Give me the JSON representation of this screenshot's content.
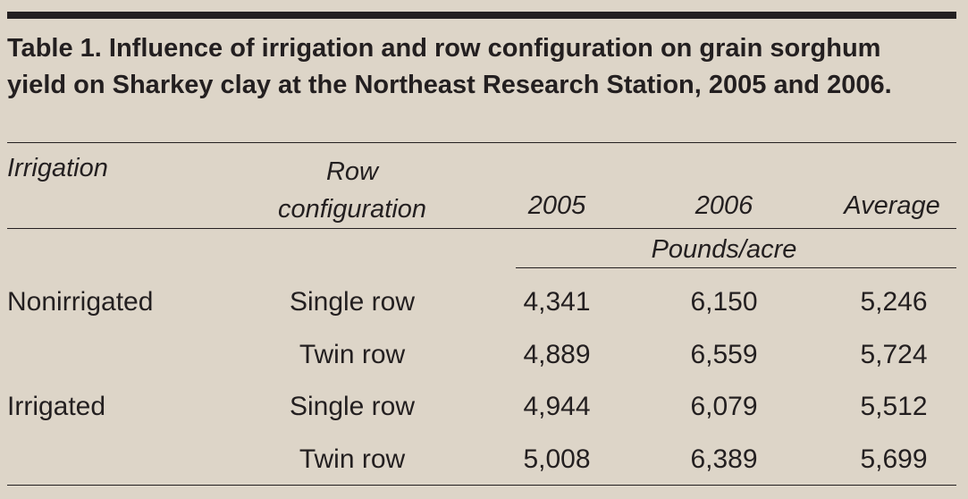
{
  "title": "Table 1. Influence of irrigation and row configuration on grain sorghum yield on Sharkey clay at the Northeast Research Station, 2005 and 2006.",
  "table": {
    "headers": [
      "Irrigation",
      "Row configuration",
      "2005",
      "2006",
      "Average"
    ],
    "unit": "Pounds/acre",
    "groups": [
      {
        "irrigation": "Nonirrigated",
        "rows": [
          [
            "Single row",
            "4,341",
            "6,150",
            "5,246"
          ],
          [
            "Twin row",
            "4,889",
            "6,559",
            "5,724"
          ]
        ]
      },
      {
        "irrigation": "Irrigated",
        "rows": [
          [
            "Single row",
            "4,944",
            "6,079",
            "5,512"
          ],
          [
            "Twin row",
            "5,008",
            "6,389",
            "5,699"
          ]
        ]
      }
    ]
  }
}
